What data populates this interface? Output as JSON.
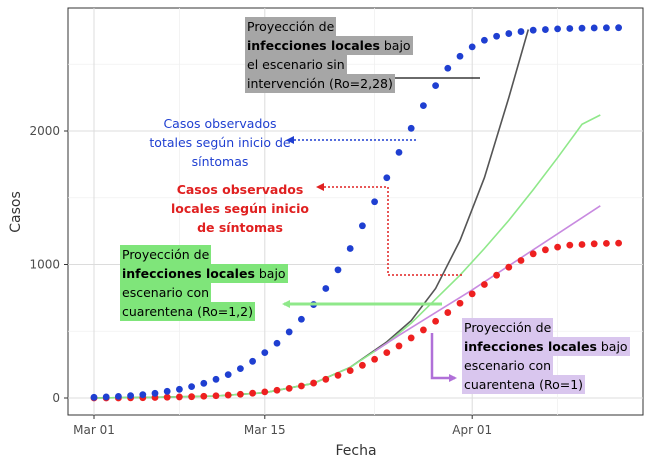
{
  "chart_data": {
    "type": "scatter",
    "xlabel": "Fecha",
    "ylabel": "Casos",
    "x_ticks": [
      "Mar 01",
      "Mar 15",
      "Apr 01"
    ],
    "y_ticks": [
      "0",
      "1000",
      "2000"
    ],
    "ylim": [
      -60,
      2860
    ],
    "grid": true,
    "x": [
      "Mar 01",
      "Mar 02",
      "Mar 03",
      "Mar 04",
      "Mar 05",
      "Mar 06",
      "Mar 07",
      "Mar 08",
      "Mar 09",
      "Mar 10",
      "Mar 11",
      "Mar 12",
      "Mar 13",
      "Mar 14",
      "Mar 15",
      "Mar 16",
      "Mar 17",
      "Mar 18",
      "Mar 19",
      "Mar 20",
      "Mar 21",
      "Mar 22",
      "Mar 23",
      "Mar 24",
      "Mar 25",
      "Mar 26",
      "Mar 27",
      "Mar 28",
      "Mar 29",
      "Mar 30",
      "Mar 31",
      "Apr 01",
      "Apr 02",
      "Apr 03",
      "Apr 04",
      "Apr 05",
      "Apr 06",
      "Apr 07",
      "Apr 08",
      "Apr 09",
      "Apr 10",
      "Apr 11",
      "Apr 12",
      "Apr 13"
    ],
    "series": [
      {
        "name": "Casos observados totales según inicio de síntomas",
        "color": "#1f3fd1",
        "style": "dots",
        "values": [
          5,
          8,
          12,
          18,
          25,
          35,
          50,
          65,
          85,
          110,
          140,
          175,
          220,
          275,
          340,
          410,
          495,
          590,
          700,
          820,
          960,
          1120,
          1290,
          1470,
          1650,
          1840,
          2020,
          2190,
          2340,
          2470,
          2560,
          2630,
          2680,
          2710,
          2730,
          2745,
          2755,
          2760,
          2765,
          2768,
          2770,
          2772,
          2773,
          2774
        ]
      },
      {
        "name": "Casos observados locales según inicio de síntomas",
        "color": "#ee2020",
        "style": "dots",
        "values": [
          0,
          0,
          0,
          1,
          2,
          4,
          6,
          8,
          10,
          13,
          17,
          22,
          28,
          36,
          46,
          58,
          72,
          90,
          112,
          140,
          170,
          205,
          245,
          290,
          340,
          390,
          450,
          510,
          575,
          640,
          710,
          780,
          850,
          920,
          980,
          1030,
          1080,
          1110,
          1130,
          1145,
          1150,
          1155,
          1158,
          1160
        ]
      },
      {
        "name": "Proyección de infecciones locales bajo el escenario sin intervención (Ro=2,28)",
        "color": "#555555",
        "style": "line",
        "points": [
          [
            0,
            0
          ],
          [
            5,
            5
          ],
          [
            10,
            15
          ],
          [
            14,
            40
          ],
          [
            18,
            110
          ],
          [
            21,
            230
          ],
          [
            24,
            420
          ],
          [
            26,
            580
          ],
          [
            28,
            820
          ],
          [
            30,
            1180
          ],
          [
            32,
            1650
          ],
          [
            34,
            2250
          ],
          [
            35.6,
            2760
          ]
        ]
      },
      {
        "name": "Proyección de infecciones locales bajo escenario con cuarentena (Ro=1,2)",
        "color": "#8fe88a",
        "style": "line",
        "points": [
          [
            0,
            0
          ],
          [
            5,
            5
          ],
          [
            10,
            15
          ],
          [
            14,
            40
          ],
          [
            18,
            110
          ],
          [
            21,
            230
          ],
          [
            23,
            350
          ],
          [
            24,
            410
          ],
          [
            26,
            560
          ],
          [
            28,
            740
          ],
          [
            30,
            920
          ],
          [
            32,
            1120
          ],
          [
            34,
            1330
          ],
          [
            36,
            1560
          ],
          [
            38,
            1800
          ],
          [
            40,
            2050
          ],
          [
            41.5,
            2120
          ]
        ]
      },
      {
        "name": "Proyección de infecciones locales bajo escenario con cuarentena (Ro=1)",
        "color": "#c88ae0",
        "style": "line",
        "points": [
          [
            23,
            350
          ],
          [
            25,
            470
          ],
          [
            28,
            640
          ],
          [
            31,
            810
          ],
          [
            34,
            990
          ],
          [
            37,
            1170
          ],
          [
            40,
            1350
          ],
          [
            41.5,
            1440
          ]
        ]
      }
    ]
  },
  "annotations": {
    "gray": {
      "lines": [
        [
          "Proyección de ",
          ""
        ],
        [
          "infecciones locales",
          " bajo"
        ],
        [
          "el escenario sin",
          ""
        ],
        [
          "intervención (Ro=2,28)",
          ""
        ]
      ]
    },
    "blue": {
      "lines": [
        "Casos observados",
        "totales según inicio de",
        "síntomas"
      ]
    },
    "red": {
      "lines": [
        "Casos observados",
        "locales según inicio",
        "de síntomas"
      ]
    },
    "green": {
      "lines": [
        [
          "Proyección de",
          ""
        ],
        [
          "infecciones locales",
          " bajo"
        ],
        [
          "escenario con",
          ""
        ],
        [
          "cuarentena (Ro=1,2)",
          ""
        ]
      ]
    },
    "purple": {
      "lines": [
        [
          "Proyección de",
          ""
        ],
        [
          "infecciones locales",
          " bajo"
        ],
        [
          "escenario con",
          ""
        ],
        [
          "cuarentena (Ro=1)",
          ""
        ]
      ]
    }
  }
}
